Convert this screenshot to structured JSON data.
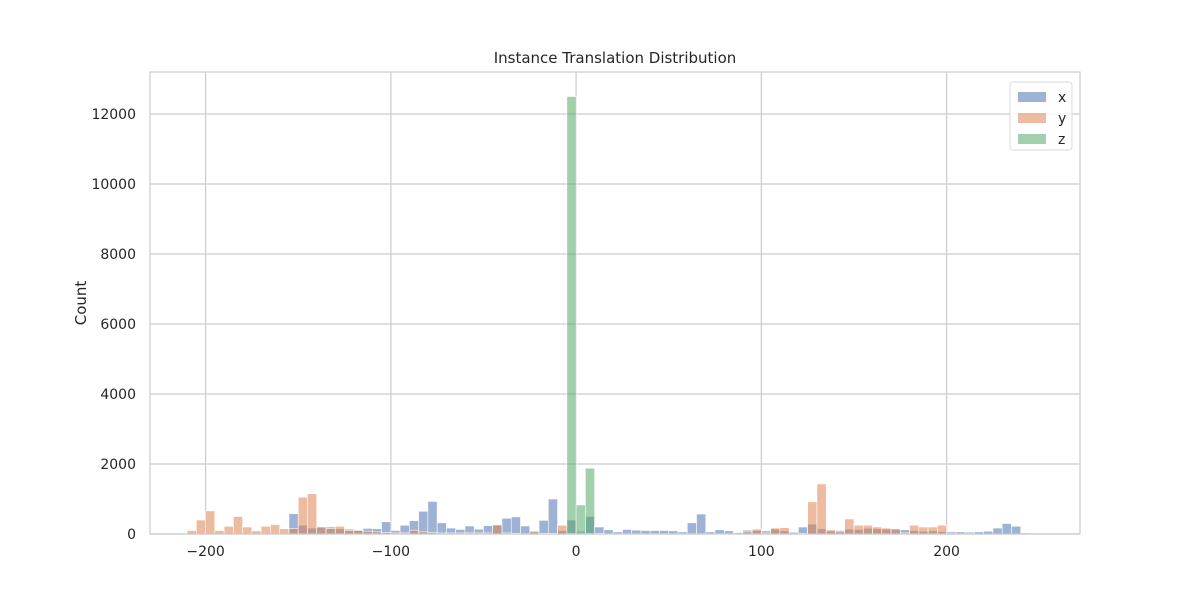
{
  "chart_data": {
    "type": "bar",
    "title": "Instance Translation Distribution",
    "xlabel": "",
    "ylabel": "Count",
    "xlim": [
      -230,
      272
    ],
    "ylim": [
      0,
      13200
    ],
    "xticks": [
      -200,
      -100,
      0,
      100,
      200
    ],
    "xtick_labels": [
      "−200",
      "−100",
      "0",
      "100",
      "200"
    ],
    "yticks": [
      0,
      2000,
      4000,
      6000,
      8000,
      10000,
      12000
    ],
    "ytick_labels": [
      "0",
      "2000",
      "4000",
      "6000",
      "8000",
      "10000",
      "12000"
    ],
    "grid": true,
    "legend_position": "top-right",
    "bin_width": 5,
    "series": [
      {
        "name": "x",
        "color": "#4c72b0",
        "opacity": 0.55,
        "bins": [
          [
            -155,
            580
          ],
          [
            -150,
            250
          ],
          [
            -145,
            170
          ],
          [
            -140,
            200
          ],
          [
            -135,
            200
          ],
          [
            -130,
            150
          ],
          [
            -125,
            140
          ],
          [
            -120,
            120
          ],
          [
            -115,
            160
          ],
          [
            -110,
            150
          ],
          [
            -105,
            350
          ],
          [
            -100,
            100
          ],
          [
            -95,
            250
          ],
          [
            -90,
            380
          ],
          [
            -85,
            650
          ],
          [
            -80,
            930
          ],
          [
            -75,
            320
          ],
          [
            -70,
            170
          ],
          [
            -65,
            130
          ],
          [
            -60,
            230
          ],
          [
            -55,
            140
          ],
          [
            -50,
            240
          ],
          [
            -45,
            240
          ],
          [
            -40,
            450
          ],
          [
            -35,
            490
          ],
          [
            -30,
            230
          ],
          [
            -25,
            90
          ],
          [
            -20,
            390
          ],
          [
            -15,
            1000
          ],
          [
            -10,
            100
          ],
          [
            -5,
            400
          ],
          [
            0,
            80
          ],
          [
            5,
            500
          ],
          [
            10,
            200
          ],
          [
            15,
            120
          ],
          [
            20,
            60
          ],
          [
            25,
            130
          ],
          [
            30,
            110
          ],
          [
            35,
            100
          ],
          [
            40,
            100
          ],
          [
            45,
            100
          ],
          [
            50,
            90
          ],
          [
            55,
            60
          ],
          [
            60,
            320
          ],
          [
            65,
            570
          ],
          [
            70,
            60
          ],
          [
            75,
            120
          ],
          [
            80,
            90
          ],
          [
            85,
            50
          ],
          [
            90,
            110
          ],
          [
            95,
            100
          ],
          [
            100,
            90
          ],
          [
            105,
            140
          ],
          [
            110,
            90
          ],
          [
            115,
            50
          ],
          [
            120,
            200
          ],
          [
            125,
            280
          ],
          [
            130,
            150
          ],
          [
            135,
            80
          ],
          [
            140,
            100
          ],
          [
            145,
            140
          ],
          [
            150,
            130
          ],
          [
            155,
            160
          ],
          [
            160,
            150
          ],
          [
            165,
            140
          ],
          [
            170,
            130
          ],
          [
            175,
            120
          ],
          [
            180,
            100
          ],
          [
            185,
            80
          ],
          [
            190,
            90
          ],
          [
            195,
            70
          ],
          [
            200,
            70
          ],
          [
            205,
            60
          ],
          [
            210,
            60
          ],
          [
            215,
            60
          ],
          [
            220,
            80
          ],
          [
            225,
            170
          ],
          [
            230,
            300
          ],
          [
            235,
            220
          ],
          [
            240,
            30
          ]
        ]
      },
      {
        "name": "y",
        "color": "#dd8452",
        "opacity": 0.55,
        "bins": [
          [
            -210,
            100
          ],
          [
            -205,
            400
          ],
          [
            -200,
            660
          ],
          [
            -195,
            100
          ],
          [
            -190,
            220
          ],
          [
            -185,
            500
          ],
          [
            -180,
            200
          ],
          [
            -175,
            90
          ],
          [
            -170,
            220
          ],
          [
            -165,
            270
          ],
          [
            -160,
            150
          ],
          [
            -155,
            160
          ],
          [
            -150,
            1050
          ],
          [
            -145,
            1150
          ],
          [
            -140,
            200
          ],
          [
            -135,
            160
          ],
          [
            -130,
            220
          ],
          [
            -125,
            100
          ],
          [
            -120,
            100
          ],
          [
            -115,
            80
          ],
          [
            -110,
            60
          ],
          [
            -105,
            40
          ],
          [
            -100,
            30
          ],
          [
            -95,
            30
          ],
          [
            -90,
            110
          ],
          [
            -85,
            60
          ],
          [
            -80,
            40
          ],
          [
            -75,
            30
          ],
          [
            -70,
            30
          ],
          [
            -65,
            30
          ],
          [
            -60,
            30
          ],
          [
            -55,
            30
          ],
          [
            -50,
            30
          ],
          [
            -45,
            270
          ],
          [
            -40,
            30
          ],
          [
            -35,
            20
          ],
          [
            -30,
            10
          ],
          [
            -25,
            60
          ],
          [
            -20,
            20
          ],
          [
            -15,
            20
          ],
          [
            -10,
            250
          ],
          [
            -5,
            20
          ],
          [
            0,
            30
          ],
          [
            5,
            20
          ],
          [
            10,
            20
          ],
          [
            15,
            10
          ],
          [
            20,
            10
          ],
          [
            25,
            10
          ],
          [
            30,
            10
          ],
          [
            35,
            10
          ],
          [
            40,
            10
          ],
          [
            45,
            10
          ],
          [
            50,
            10
          ],
          [
            55,
            10
          ],
          [
            60,
            10
          ],
          [
            65,
            10
          ],
          [
            70,
            10
          ],
          [
            75,
            10
          ],
          [
            80,
            10
          ],
          [
            85,
            30
          ],
          [
            90,
            60
          ],
          [
            95,
            140
          ],
          [
            100,
            30
          ],
          [
            105,
            170
          ],
          [
            110,
            180
          ],
          [
            115,
            10
          ],
          [
            120,
            20
          ],
          [
            125,
            920
          ],
          [
            130,
            1430
          ],
          [
            135,
            120
          ],
          [
            140,
            60
          ],
          [
            145,
            430
          ],
          [
            150,
            250
          ],
          [
            155,
            250
          ],
          [
            160,
            200
          ],
          [
            165,
            170
          ],
          [
            170,
            150
          ],
          [
            175,
            30
          ],
          [
            180,
            250
          ],
          [
            185,
            200
          ],
          [
            190,
            200
          ],
          [
            195,
            250
          ],
          [
            200,
            30
          ],
          [
            205,
            10
          ],
          [
            210,
            30
          ]
        ]
      },
      {
        "name": "z",
        "color": "#55a868",
        "opacity": 0.55,
        "bins": [
          [
            -5,
            12500
          ],
          [
            0,
            830
          ],
          [
            5,
            1880
          ]
        ]
      }
    ]
  }
}
